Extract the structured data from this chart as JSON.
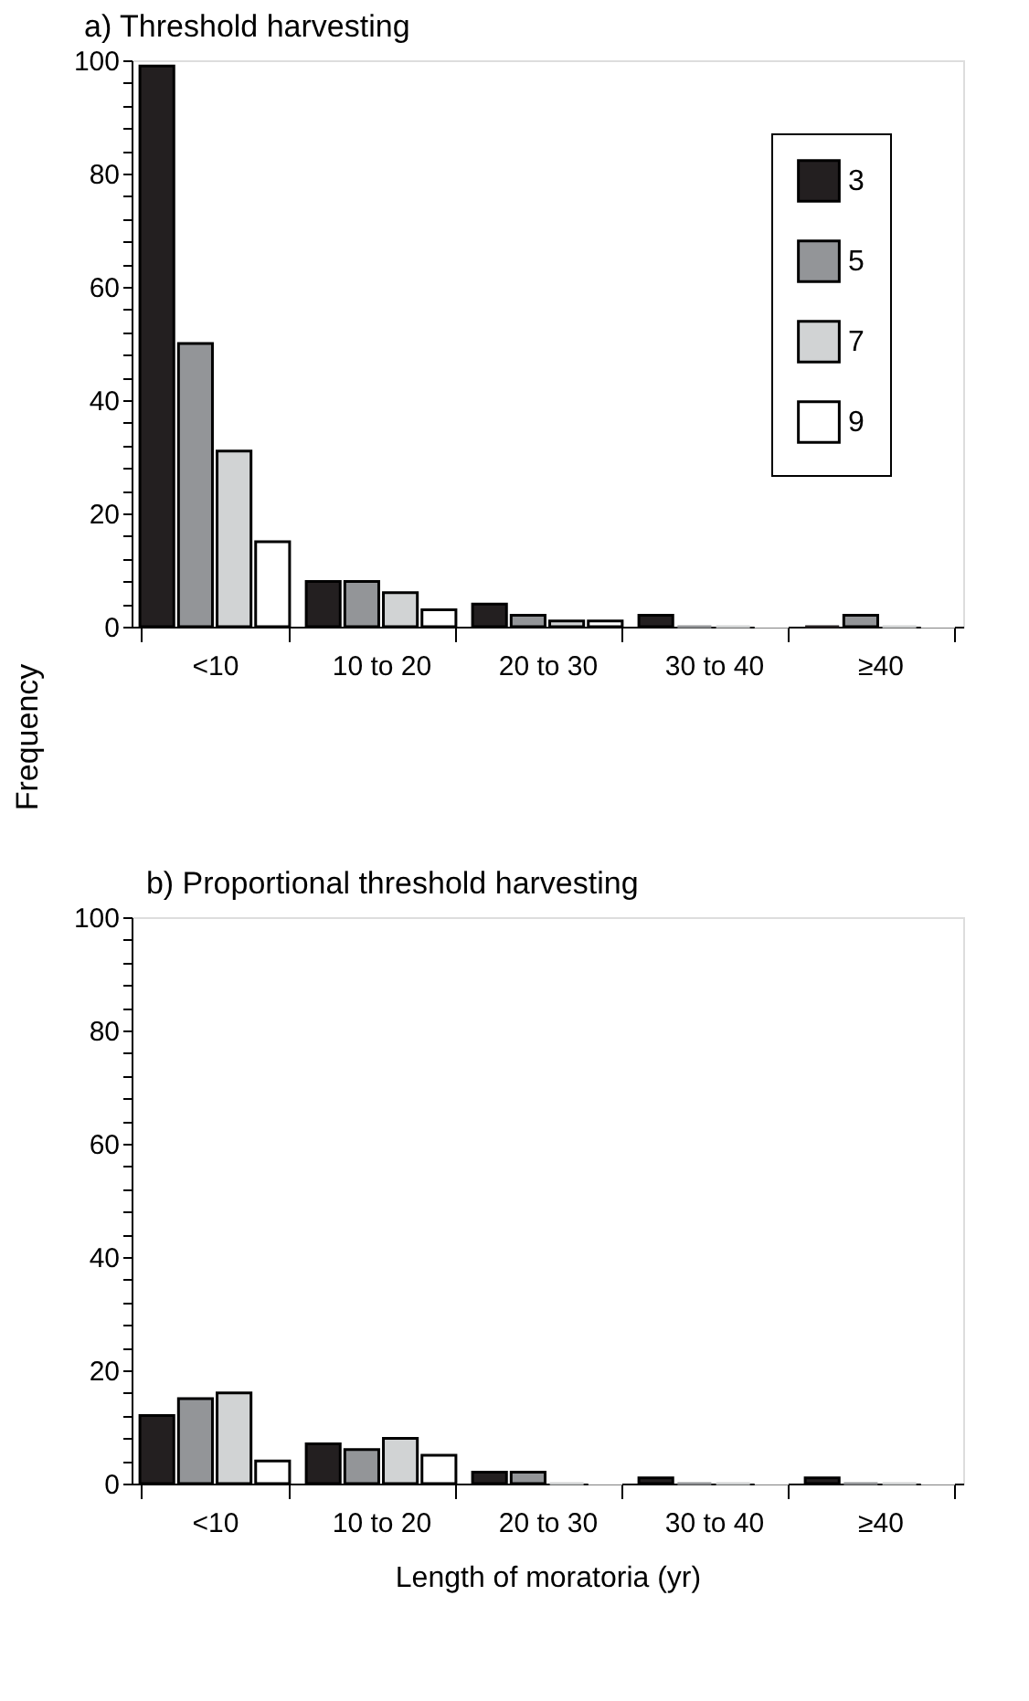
{
  "chart_data": [
    {
      "type": "bar",
      "title": "a)     Threshold harvesting",
      "ylabel": "Frequency",
      "categories": [
        "<10",
        "10 to 20",
        "20 to 30",
        "30 to 40",
        "≥40"
      ],
      "series": [
        {
          "name": "3",
          "color": "#231f20",
          "values": [
            99,
            8,
            4,
            2,
            0
          ]
        },
        {
          "name": "5",
          "color": "#939598",
          "values": [
            50,
            8,
            2,
            0,
            2
          ]
        },
        {
          "name": "7",
          "color": "#d1d3d4",
          "values": [
            31,
            6,
            1,
            0,
            0
          ]
        },
        {
          "name": "9",
          "color": "#ffffff",
          "values": [
            15,
            3,
            1,
            0,
            0
          ]
        }
      ],
      "ylim": [
        0,
        100
      ],
      "yticks": [
        0,
        {
          "value": 4,
          "label": null
        },
        {
          "value": 8,
          "label": null
        },
        {
          "value": 12,
          "label": null
        },
        {
          "value": 16,
          "label": null
        },
        20,
        {
          "value": 24,
          "label": null
        },
        {
          "value": 28,
          "label": null
        },
        {
          "value": 32,
          "label": null
        },
        {
          "value": 36,
          "label": null
        },
        40,
        {
          "value": 44,
          "label": null
        },
        {
          "value": 48,
          "label": null
        },
        {
          "value": 52,
          "label": null
        },
        {
          "value": 56,
          "label": null
        },
        60,
        {
          "value": 64,
          "label": null
        },
        {
          "value": 68,
          "label": null
        },
        {
          "value": 72,
          "label": null
        },
        {
          "value": 76,
          "label": null
        },
        80,
        {
          "value": 84,
          "label": null
        },
        {
          "value": 88,
          "label": null
        },
        {
          "value": 92,
          "label": null
        },
        {
          "value": 96,
          "label": null
        },
        100
      ],
      "grid": false,
      "legend": "top right"
    },
    {
      "type": "bar",
      "title": "b)     Proportional threshold harvesting",
      "xlabel": "Length of moratoria (yr)",
      "categories": [
        "<10",
        "10 to 20",
        "20 to 30",
        "30 to 40",
        "≥40"
      ],
      "series": [
        {
          "color": "#231f20",
          "values": [
            12,
            7,
            2,
            1,
            1
          ]
        },
        {
          "color": "#939598",
          "values": [
            15,
            6,
            2,
            0,
            0
          ]
        },
        {
          "color": "#d1d3d4",
          "values": [
            16,
            8,
            0,
            0,
            0
          ]
        },
        {
          "color": "#ffffff",
          "values": [
            4,
            5,
            0,
            0,
            0
          ]
        }
      ],
      "ylim": [
        0,
        100
      ],
      "yticks": [
        0,
        {
          "value": 4,
          "label": null
        },
        {
          "value": 8,
          "label": null
        },
        {
          "value": 12,
          "label": null
        },
        {
          "value": 16,
          "label": null
        },
        20,
        {
          "value": 24,
          "label": null
        },
        {
          "value": 28,
          "label": null
        },
        {
          "value": 32,
          "label": null
        },
        {
          "value": 36,
          "label": null
        },
        40,
        {
          "value": 44,
          "label": null
        },
        {
          "value": 48,
          "label": null
        },
        {
          "value": 52,
          "label": null
        },
        {
          "value": 56,
          "label": null
        },
        60,
        {
          "value": 64,
          "label": null
        },
        {
          "value": 68,
          "label": null
        },
        {
          "value": 72,
          "label": null
        },
        {
          "value": 76,
          "label": null
        },
        80,
        {
          "value": 84,
          "label": null
        },
        {
          "value": 88,
          "label": null
        },
        {
          "value": 92,
          "label": null
        },
        {
          "value": 96,
          "label": null
        },
        100
      ],
      "grid": false,
      "legend": false
    }
  ]
}
